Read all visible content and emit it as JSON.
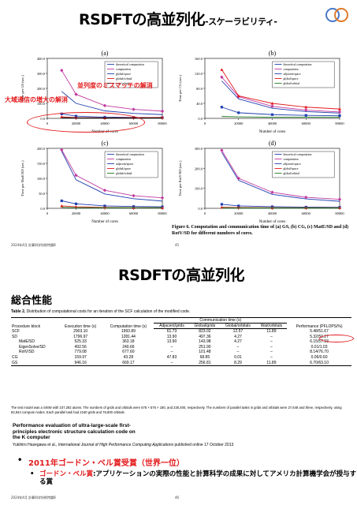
{
  "slide1": {
    "title": "RSDFTの高並列化",
    "title_suffix": "-スケーラビリティ-",
    "annotation_parallel": "並列度のミスマッチの解消",
    "annotation_comm": "大域通信の増大の解消",
    "caption": "Figure 6. Computation and communication time of (a) GS, (b) CG, (c) MatE/SD and (d) RotV/SD for different numbers of cores.",
    "footer": "2024年4月 計算科学技術特論B",
    "page": "45"
  },
  "chart_data": [
    {
      "type": "line",
      "panel": "(a)",
      "x": [
        0,
        10000,
        20000,
        40000,
        60000,
        80000
      ],
      "xticks": [
        "0",
        "",
        "20000",
        "40000",
        "60000",
        "80000"
      ],
      "ylim": [
        0,
        400
      ],
      "yticks": [
        "0.0",
        "100.0",
        "200.0",
        "300.0",
        "400.0"
      ],
      "ylabel": "Time per GS (sec.)",
      "xlabel": "Number of cores",
      "series": [
        {
          "name": "theoretical computation",
          "color": "#1f3fb0",
          "marker": "none",
          "values": [
            null,
            180,
            100,
            50,
            33,
            25
          ]
        },
        {
          "name": "computation",
          "color": "#c0399f",
          "marker": "diamond",
          "values": [
            null,
            320,
            160,
            85,
            60,
            48
          ]
        },
        {
          "name": "global/space",
          "color": "#1f3fb0",
          "marker": "square",
          "values": [
            null,
            30,
            15,
            8,
            6,
            5
          ]
        },
        {
          "name": "global/orbital",
          "color": "#e31a1c",
          "marker": "triangle",
          "values": [
            null,
            10,
            5,
            3,
            5,
            6
          ]
        },
        {
          "name": "wait/orbital",
          "color": "#000000",
          "marker": "none",
          "values": [
            null,
            4,
            3,
            2,
            2,
            3
          ]
        }
      ]
    },
    {
      "type": "line",
      "panel": "(b)",
      "x": [
        0,
        10000,
        20000,
        40000,
        60000,
        80000
      ],
      "xticks": [
        "0",
        "20000",
        "40000",
        "60000",
        "80000"
      ],
      "ylim": [
        0,
        160
      ],
      "yticks": [
        "0.0",
        "40.0",
        "80.0",
        "120.0",
        "160.0"
      ],
      "ylabel": "Time per CG (sec.)",
      "xlabel": "Number of cores",
      "series": [
        {
          "name": "theoretical computation",
          "color": "#1f3fb0",
          "marker": "none",
          "values": [
            null,
            100,
            52,
            27,
            18,
            14
          ]
        },
        {
          "name": "computation",
          "color": "#c0399f",
          "marker": "diamond",
          "values": [
            null,
            110,
            58,
            32,
            22,
            17
          ]
        },
        {
          "name": "adjacent/space",
          "color": "#1f3fb0",
          "marker": "square",
          "values": [
            null,
            30,
            15,
            10,
            8,
            7
          ]
        },
        {
          "name": "global/space",
          "color": "#e31a1c",
          "marker": "triangle",
          "values": [
            null,
            130,
            60,
            40,
            30,
            25
          ]
        },
        {
          "name": "global/orbital",
          "color": "#1f7a1f",
          "marker": "none",
          "values": [
            null,
            5,
            4,
            3,
            3,
            3
          ]
        }
      ]
    },
    {
      "type": "line",
      "panel": "(c)",
      "x": [
        0,
        10000,
        20000,
        40000,
        60000,
        80000
      ],
      "xticks": [
        "0",
        "",
        "20000",
        "40000",
        "60000",
        "80000"
      ],
      "ylim": [
        0,
        200
      ],
      "yticks": [
        "0.0",
        "50.0",
        "100.0",
        "150.0",
        "200.0"
      ],
      "ylabel": "Time per MatE/SD (sec.)",
      "xlabel": "Number of cores",
      "series": [
        {
          "name": "theoretical computation",
          "color": "#1f3fb0",
          "marker": "none",
          "values": [
            null,
            190,
            95,
            48,
            32,
            24
          ]
        },
        {
          "name": "computation",
          "color": "#c0399f",
          "marker": "diamond",
          "values": [
            null,
            195,
            110,
            60,
            42,
            35
          ]
        },
        {
          "name": "adjacent/space",
          "color": "#1f3fb0",
          "marker": "square",
          "values": [
            null,
            25,
            15,
            8,
            6,
            5
          ]
        },
        {
          "name": "global/space",
          "color": "#e31a1c",
          "marker": "triangle",
          "values": [
            null,
            8,
            5,
            3,
            2,
            2
          ]
        },
        {
          "name": "global/orbital",
          "color": "#1f7a1f",
          "marker": "none",
          "values": [
            null,
            3,
            2,
            2,
            2,
            2
          ]
        }
      ]
    },
    {
      "type": "line",
      "panel": "(d)",
      "x": [
        0,
        10000,
        20000,
        40000,
        60000,
        80000
      ],
      "xticks": [
        "0",
        "20000",
        "40000",
        "60000",
        "80000"
      ],
      "ylim": [
        0,
        300
      ],
      "yticks": [
        "0.0",
        "100.0",
        "200.0",
        "300.0"
      ],
      "ylabel": "Time per RotV/SD (sec.)",
      "xlabel": "Number of cores",
      "series": [
        {
          "name": "theoretical computation",
          "color": "#1f3fb0",
          "marker": "none",
          "values": [
            null,
            280,
            140,
            70,
            47,
            35
          ]
        },
        {
          "name": "computation",
          "color": "#c0399f",
          "marker": "diamond",
          "values": [
            null,
            290,
            150,
            80,
            55,
            45
          ]
        },
        {
          "name": "adjacent/space",
          "color": "#1f3fb0",
          "marker": "square",
          "values": [
            null,
            20,
            12,
            8,
            6,
            5
          ]
        },
        {
          "name": "global/space",
          "color": "#e31a1c",
          "marker": "triangle",
          "values": [
            null,
            5,
            4,
            3,
            3,
            3
          ]
        },
        {
          "name": "global/orbital",
          "color": "#1f7a1f",
          "marker": "none",
          "values": [
            null,
            2,
            2,
            2,
            2,
            2
          ]
        }
      ]
    }
  ],
  "slide2": {
    "title": "RSDFTの高並列化",
    "section": "総合性能",
    "table_caption_bold": "Table 2.",
    "table_caption": " Distribution of computational costs for an iteration of the SCF calculation of the modified code.",
    "headers": {
      "procedure": "Procedure block",
      "execution": "Execution time (s)",
      "computation": "Computation time (s)",
      "comm_group": "Communication time (s)",
      "adjacent": "Adjacent/grids",
      "global_grids": "Global/grids",
      "global_orbitals": "Global/orbitals",
      "wait": "Wait/orbitals",
      "performance": "Performance (PFLOPS/%)"
    },
    "rows": [
      {
        "name": "SCF",
        "sub": false,
        "exec": "2903.10",
        "comp": "1993.89",
        "adj": "61.73",
        "gg": "823.02",
        "go": "12.57",
        "wait": "11.89",
        "perf": "5.48/51.67"
      },
      {
        "name": "SD",
        "sub": false,
        "exec": "1796.97",
        "comp": "1281.44",
        "adj": "13.90",
        "gg": "497.36",
        "go": "4.27",
        "wait": "–",
        "perf": "5.32/50.17"
      },
      {
        "name": "MatE/SD",
        "sub": true,
        "exec": "525.33",
        "comp": "363.18",
        "adj": "13.90",
        "gg": "143.98",
        "go": "4.27",
        "wait": "–",
        "perf": "6.15/57.93"
      },
      {
        "name": "EigenSolve/SD",
        "sub": true,
        "exec": "492.56",
        "comp": "240.66",
        "adj": "–",
        "gg": "251.90",
        "go": "–",
        "wait": "–",
        "perf": "0.01/1.03"
      },
      {
        "name": "RotV/SD",
        "sub": true,
        "exec": "779.08",
        "comp": "677.60",
        "adj": "–",
        "gg": "101.48",
        "go": "–",
        "wait": "–",
        "perf": "8.14/76.70"
      },
      {
        "name": "CG",
        "sub": false,
        "exec": "159.97",
        "comp": "43.28",
        "adj": "47.83",
        "gg": "68.85",
        "go": "0.01",
        "wait": "–",
        "perf": "0.06/0.60"
      },
      {
        "name": "GS",
        "sub": false,
        "exec": "946.16",
        "comp": "669.17",
        "adj": "–",
        "gg": "256.81",
        "go": "8.29",
        "wait": "11.89",
        "perf": "6.70/63.10"
      }
    ],
    "table_note": "The test model was a SiNW with 107,292 atoms. The numbers of grids and orbitals were 576 × 576 × 180, and 230,400, respectively. The numbers of parallel tasks in grids and orbitals were 27,648 and three, respectively, using 82,944 compute nodes. Each parallel task had 2160 grids and 76,800 orbitals.",
    "paper_title": "Performance evaluation of ultra-large-scale first-principles electronic structure calculation code on the K computer",
    "citation_authors": "Yukihiro Hasegawa et al., ",
    "citation_journal": "International Journal of High Performance Computing Applications",
    "citation_rest": " published online 17 October 2013",
    "bullet1": "2011年ゴードン・ベル賞受賞（世界一位）",
    "bullet2_red": "ゴードン・ベル賞",
    "bullet2_rest": ":アプリケーションの実際の性能と計算科学の成果に対してアメリカ計算機学会が授与する賞",
    "footer": "2024年4月 計算科学技術特論B",
    "page": "46"
  }
}
